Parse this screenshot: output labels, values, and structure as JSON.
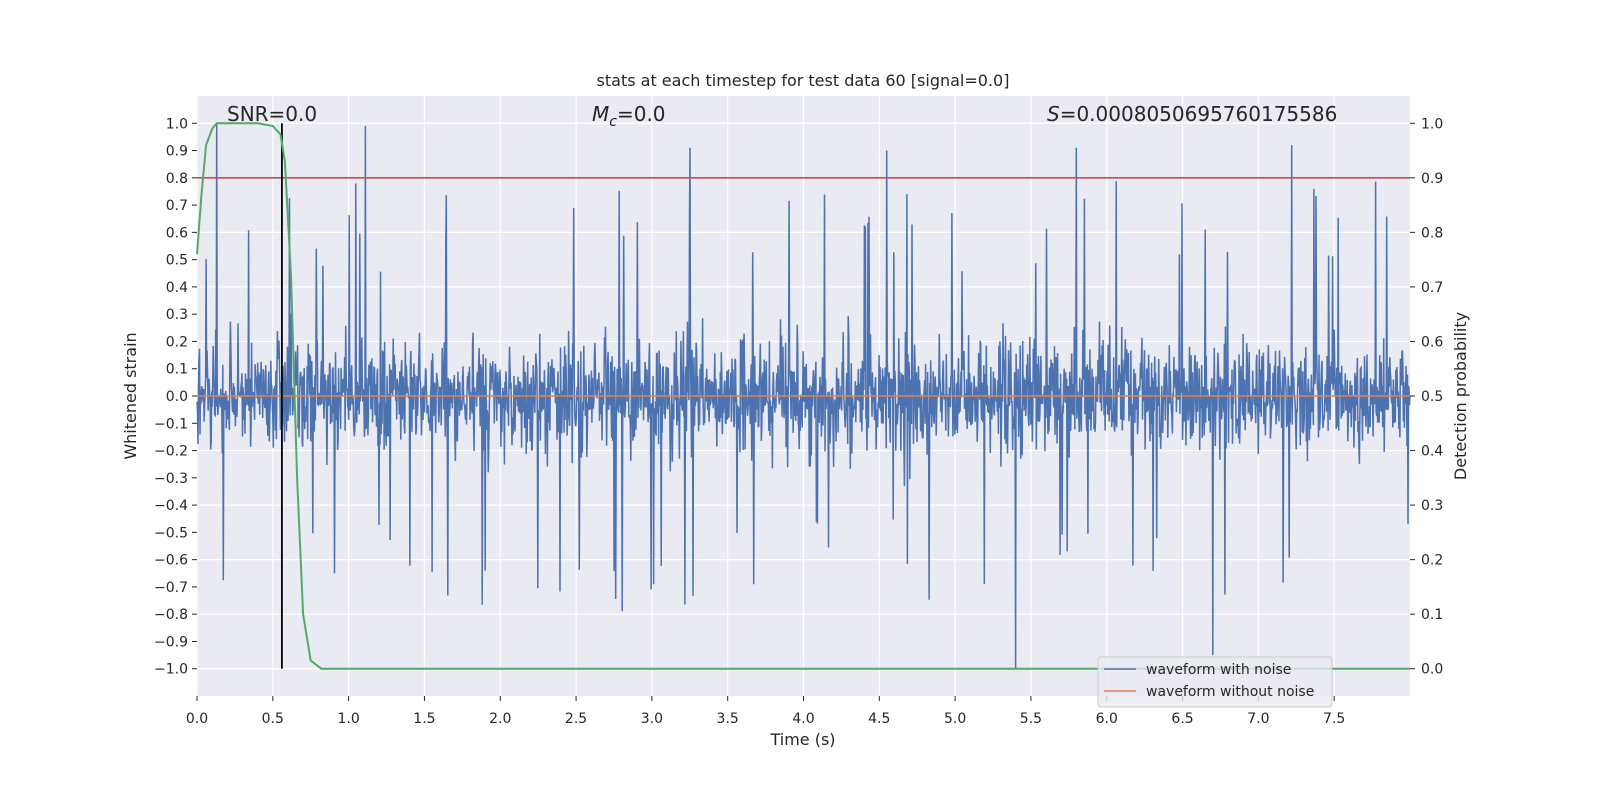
{
  "chart_data": {
    "type": "line",
    "title": "stats at each timestep for test data 60 [signal=0.0]",
    "xlabel": "Time (s)",
    "ylabel": "Whitened strain",
    "y2label": "Detection probability",
    "xlim": [
      0.0,
      8.0
    ],
    "ylim": [
      -1.1,
      1.1
    ],
    "y2lim": [
      -0.05,
      1.05
    ],
    "x_ticks": [
      0.0,
      0.5,
      1.0,
      1.5,
      2.0,
      2.5,
      3.0,
      3.5,
      4.0,
      4.5,
      5.0,
      5.5,
      6.0,
      6.5,
      7.0,
      7.5
    ],
    "x_tick_labels": [
      "0.0",
      "0.5",
      "1.0",
      "1.5",
      "2.0",
      "2.5",
      "3.0",
      "3.5",
      "4.0",
      "4.5",
      "5.0",
      "5.5",
      "6.0",
      "6.5",
      "7.0",
      "7.5"
    ],
    "y_ticks": [
      1.0,
      0.9,
      0.8,
      0.7,
      0.6,
      0.5,
      0.4,
      0.3,
      0.2,
      0.1,
      0.0,
      -0.1,
      -0.2,
      -0.3,
      -0.4,
      -0.5,
      -0.6,
      -0.7,
      -0.8,
      -0.9,
      -1.0
    ],
    "y_tick_labels": [
      "1.0",
      "0.9",
      "0.8",
      "0.7",
      "0.6",
      "0.5",
      "0.4",
      "0.3",
      "0.2",
      "0.1",
      "0.0",
      "−0.1",
      "−0.2",
      "−0.3",
      "−0.4",
      "−0.5",
      "−0.6",
      "−0.7",
      "−0.8",
      "−0.9",
      "−1.0"
    ],
    "y2_ticks": [
      1.0,
      0.9,
      0.8,
      0.7,
      0.6,
      0.5,
      0.4,
      0.3,
      0.2,
      0.1,
      0.0
    ],
    "y2_tick_labels": [
      "1.0",
      "0.9",
      "0.8",
      "0.7",
      "0.6",
      "0.5",
      "0.4",
      "0.3",
      "0.2",
      "0.1",
      "0.0"
    ],
    "annotations": {
      "snr": "SNR=0.0",
      "mc_symbol": "M",
      "mc_sub": "c",
      "mc_value": "=0.0",
      "s_symbol": "S",
      "s_value": "=0.0008050695760175586"
    },
    "series": [
      {
        "name": "waveform with noise",
        "color": "#4c72b0",
        "axis": "left",
        "description": "dense noise trace, mostly within ±0.4 with spikes",
        "envelope_min": -1.0,
        "envelope_max": 1.0,
        "notable_peaks": [
          {
            "x": 0.13,
            "y": 1.0
          },
          {
            "x": 1.11,
            "y": 0.99
          },
          {
            "x": 3.25,
            "y": 0.91
          },
          {
            "x": 4.55,
            "y": 0.9
          },
          {
            "x": 5.8,
            "y": 0.91
          },
          {
            "x": 7.22,
            "y": 0.92
          },
          {
            "x": 5.4,
            "y": -1.0
          },
          {
            "x": 6.7,
            "y": -0.95
          }
        ]
      },
      {
        "name": "waveform without noise",
        "color": "#dd8452",
        "axis": "left",
        "x": [
          0.0,
          8.0
        ],
        "y": [
          0.0,
          0.0
        ]
      },
      {
        "name": "detection probability",
        "color": "#55a868",
        "axis": "right",
        "x": [
          0.0,
          0.03,
          0.06,
          0.1,
          0.13,
          0.2,
          0.3,
          0.4,
          0.5,
          0.55,
          0.58,
          0.62,
          0.66,
          0.7,
          0.75,
          0.82,
          1.0,
          2.0,
          3.0,
          4.0,
          5.0,
          6.0,
          7.0,
          8.0
        ],
        "y": [
          0.76,
          0.87,
          0.96,
          0.99,
          1.0,
          1.0,
          1.0,
          1.0,
          0.995,
          0.98,
          0.93,
          0.72,
          0.35,
          0.1,
          0.015,
          0.0,
          0.0,
          0.0,
          0.0,
          0.0,
          0.0,
          0.0,
          0.0,
          0.0
        ]
      }
    ],
    "threshold": {
      "axis": "right",
      "y": 0.9,
      "color": "#c44e52"
    },
    "marker_line": {
      "x": 0.56,
      "y_from": -1.0,
      "y_to": 1.0,
      "color": "#000000"
    },
    "legend": {
      "position": "bottom-right",
      "entries": [
        {
          "label": "waveform with noise",
          "color": "#4c72b0"
        },
        {
          "label": "waveform without noise",
          "color": "#dd8452"
        }
      ]
    }
  }
}
